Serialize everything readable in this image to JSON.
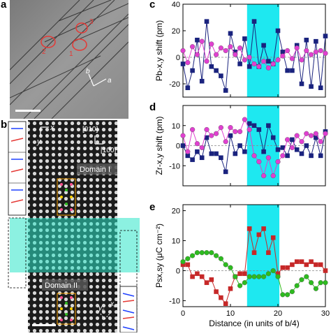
{
  "panels": {
    "a": {
      "letter": "a",
      "labels": [
        "1",
        "2",
        "3"
      ],
      "axis_b": "b",
      "axis_a": "a"
    },
    "b": {
      "letter": "b",
      "axis_x": "x",
      "axis_y": "y",
      "dir_010": "[010]",
      "dir_100": "[100]",
      "domain1": "Domain I",
      "domain2": "Domain II",
      "axis_yc": "y",
      "axis_yc_sub": "c",
      "axis_xc": "x",
      "axis_xc_sub": "c"
    }
  },
  "shared": {
    "xlabel": "Distance (in units of b/4)",
    "x_ticks": [
      "0",
      "10",
      "20",
      "30"
    ],
    "cyan_band": [
      13.5,
      20.3
    ]
  },
  "chart_data": [
    {
      "panel": "c",
      "type": "line",
      "ylabel": "Pb-x,y shift (pm)",
      "ylim": [
        -30,
        40
      ],
      "y_ticks": [
        "-20",
        "0",
        "20",
        "40"
      ],
      "xlim": [
        0,
        30
      ],
      "series": [
        {
          "color": "#1a237e",
          "marker": "square",
          "values": [
            [
              0,
              -5
            ],
            [
              1,
              -23
            ],
            [
              2,
              -10
            ],
            [
              3,
              13
            ],
            [
              4,
              -18
            ],
            [
              5,
              27
            ],
            [
              6,
              -7
            ],
            [
              7,
              -10
            ],
            [
              8,
              -14
            ],
            [
              9,
              -25
            ],
            [
              10,
              18
            ],
            [
              11,
              4
            ],
            [
              12,
              -5
            ],
            [
              13,
              14
            ],
            [
              14,
              -7
            ],
            [
              15,
              27
            ],
            [
              16,
              -7
            ],
            [
              17,
              9
            ],
            [
              18,
              -3
            ],
            [
              19,
              -5
            ],
            [
              20,
              20
            ],
            [
              21,
              4
            ],
            [
              22,
              -10
            ],
            [
              23,
              -10
            ],
            [
              24,
              9
            ],
            [
              25,
              -20
            ],
            [
              26,
              13
            ],
            [
              27,
              -22
            ],
            [
              28,
              12
            ],
            [
              29,
              -23
            ],
            [
              30,
              16
            ]
          ]
        },
        {
          "color": "#e040d0",
          "marker": "circle",
          "values": [
            [
              0,
              5
            ],
            [
              1,
              -4
            ],
            [
              2,
              8
            ],
            [
              3,
              2
            ],
            [
              4,
              12
            ],
            [
              5,
              -3
            ],
            [
              6,
              10
            ],
            [
              7,
              2
            ],
            [
              8,
              7
            ],
            [
              9,
              5
            ],
            [
              10,
              8
            ],
            [
              11,
              2
            ],
            [
              12,
              7
            ],
            [
              13,
              -2
            ],
            [
              14,
              0
            ],
            [
              15,
              -5
            ],
            [
              16,
              -7
            ],
            [
              17,
              -3
            ],
            [
              18,
              -8
            ],
            [
              19,
              -5
            ],
            [
              20,
              -2
            ],
            [
              21,
              1
            ],
            [
              22,
              5
            ],
            [
              23,
              -1
            ],
            [
              24,
              7
            ],
            [
              25,
              -2
            ],
            [
              26,
              5
            ],
            [
              27,
              2
            ],
            [
              28,
              4
            ],
            [
              29,
              5
            ],
            [
              30,
              3
            ]
          ]
        }
      ]
    },
    {
      "panel": "d",
      "type": "line",
      "ylabel": "Zr-x,y shift (pm)",
      "ylim": [
        -20,
        20
      ],
      "y_ticks": [
        "-10",
        "0",
        "10"
      ],
      "xlim": [
        0,
        30
      ],
      "series": [
        {
          "color": "#1a237e",
          "marker": "square",
          "values": [
            [
              0,
              0
            ],
            [
              1,
              -5
            ],
            [
              2,
              -7
            ],
            [
              3,
              -3
            ],
            [
              4,
              -6
            ],
            [
              5,
              4
            ],
            [
              6,
              -4
            ],
            [
              7,
              -4
            ],
            [
              8,
              -6
            ],
            [
              9,
              -13
            ],
            [
              10,
              5
            ],
            [
              11,
              -4
            ],
            [
              12,
              0
            ],
            [
              13,
              -3
            ],
            [
              14,
              11
            ],
            [
              15,
              10
            ],
            [
              16,
              8
            ],
            [
              17,
              -3
            ],
            [
              18,
              10
            ],
            [
              19,
              4
            ],
            [
              20,
              -2
            ],
            [
              21,
              -1
            ],
            [
              22,
              -5
            ],
            [
              23,
              3
            ],
            [
              24,
              -2
            ],
            [
              25,
              -4
            ],
            [
              26,
              0
            ],
            [
              27,
              -5
            ],
            [
              28,
              4
            ],
            [
              29,
              -5
            ],
            [
              30,
              7
            ]
          ]
        },
        {
          "color": "#e040d0",
          "marker": "circle",
          "values": [
            [
              0,
              5
            ],
            [
              1,
              -3
            ],
            [
              2,
              8
            ],
            [
              3,
              1
            ],
            [
              4,
              -1
            ],
            [
              5,
              8
            ],
            [
              6,
              5
            ],
            [
              7,
              6
            ],
            [
              8,
              9
            ],
            [
              9,
              2
            ],
            [
              10,
              9
            ],
            [
              11,
              7
            ],
            [
              12,
              7
            ],
            [
              13,
              13
            ],
            [
              14,
              8
            ],
            [
              15,
              -5
            ],
            [
              16,
              -8
            ],
            [
              17,
              -15
            ],
            [
              18,
              -6
            ],
            [
              19,
              -15
            ],
            [
              20,
              -8
            ],
            [
              21,
              -5
            ],
            [
              22,
              3
            ],
            [
              23,
              -1
            ],
            [
              24,
              5
            ],
            [
              25,
              2
            ],
            [
              26,
              6
            ],
            [
              27,
              5
            ],
            [
              28,
              6
            ],
            [
              29,
              2
            ],
            [
              30,
              6
            ]
          ]
        }
      ]
    },
    {
      "panel": "e",
      "type": "line",
      "ylabel": "Psx,sy (μC cm⁻²)",
      "ylim": [
        -12,
        22
      ],
      "y_ticks": [
        "-10",
        "0",
        "10",
        "20"
      ],
      "xlim": [
        0,
        30
      ],
      "series": [
        {
          "color": "#c62828",
          "marker": "square",
          "values": [
            [
              0,
              2
            ],
            [
              1,
              2
            ],
            [
              2,
              -2
            ],
            [
              3,
              -1
            ],
            [
              4,
              -2
            ],
            [
              5,
              -4
            ],
            [
              6,
              -3
            ],
            [
              7,
              -7
            ],
            [
              8,
              -9
            ],
            [
              9,
              -11
            ],
            [
              10,
              -6
            ],
            [
              11,
              -2
            ],
            [
              12,
              -1
            ],
            [
              13,
              -1
            ],
            [
              14,
              14
            ],
            [
              15,
              6
            ],
            [
              16,
              12
            ],
            [
              17,
              14
            ],
            [
              18,
              6
            ],
            [
              19,
              11
            ],
            [
              20,
              -1
            ],
            [
              21,
              1
            ],
            [
              22,
              1
            ],
            [
              23,
              2
            ],
            [
              24,
              3
            ],
            [
              25,
              3
            ],
            [
              26,
              2
            ],
            [
              27,
              3
            ],
            [
              28,
              2
            ],
            [
              29,
              2
            ],
            [
              30,
              0
            ]
          ]
        },
        {
          "color": "#2dbb1f",
          "marker": "circle",
          "values": [
            [
              0,
              3
            ],
            [
              1,
              4
            ],
            [
              2,
              5
            ],
            [
              3,
              6
            ],
            [
              4,
              6
            ],
            [
              5,
              6
            ],
            [
              6,
              6
            ],
            [
              7,
              5
            ],
            [
              8,
              4
            ],
            [
              9,
              2
            ],
            [
              10,
              1
            ],
            [
              11,
              -2
            ],
            [
              12,
              -5
            ],
            [
              13,
              -4
            ],
            [
              14,
              -2
            ],
            [
              15,
              -2
            ],
            [
              16,
              -2
            ],
            [
              17,
              -2
            ],
            [
              18,
              -1
            ],
            [
              19,
              0
            ],
            [
              20,
              -2
            ],
            [
              21,
              -8
            ],
            [
              22,
              -8
            ],
            [
              23,
              -7
            ],
            [
              24,
              -5
            ],
            [
              25,
              -3
            ],
            [
              26,
              -2
            ],
            [
              27,
              -4
            ],
            [
              28,
              -6
            ],
            [
              29,
              -4
            ],
            [
              30,
              -4
            ]
          ]
        }
      ]
    }
  ]
}
